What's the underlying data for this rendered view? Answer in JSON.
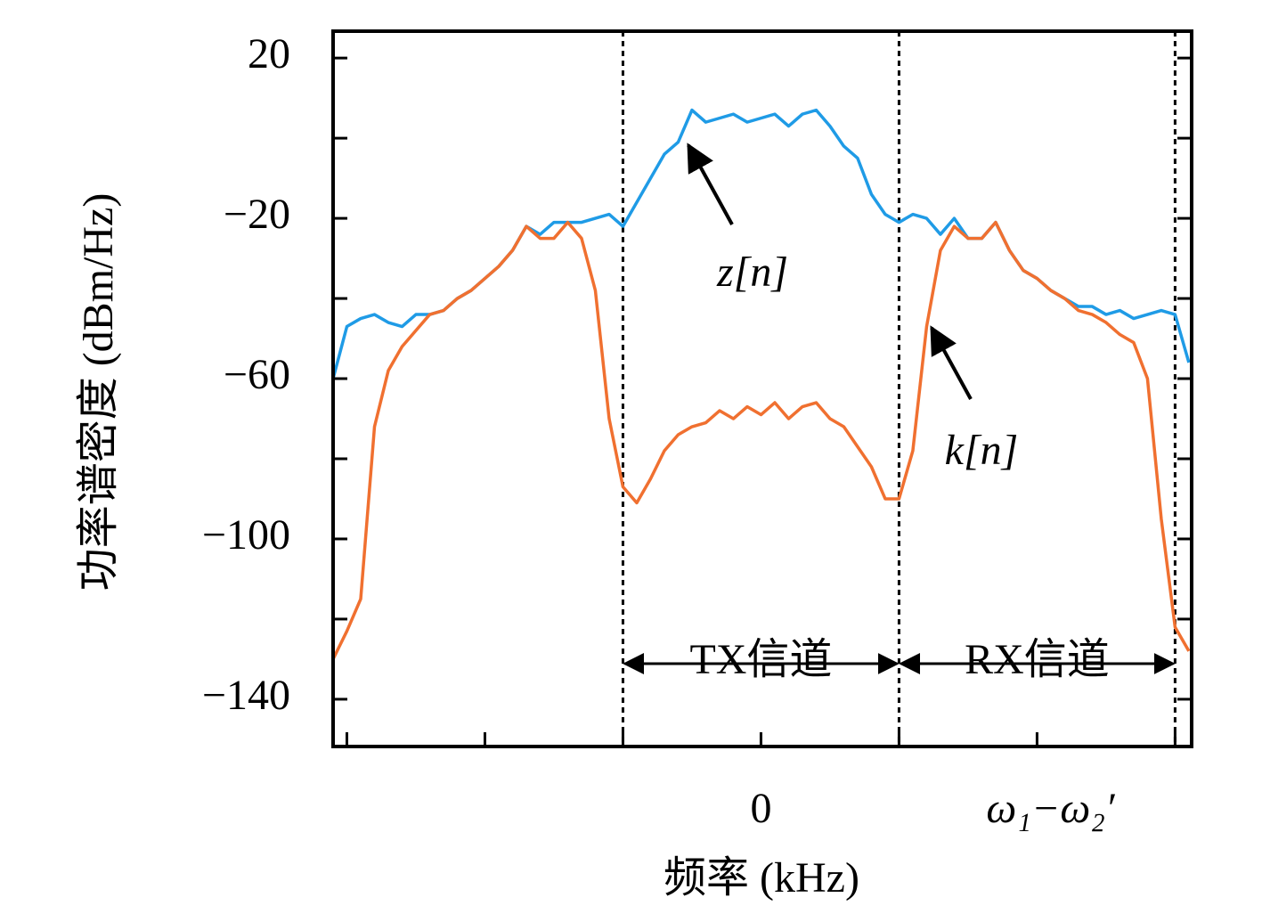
{
  "chart_data": {
    "type": "line",
    "x_label": "频率 (kHz)",
    "y_label": "功率谱密度 (dBm/Hz)",
    "xlim": [
      -3.1,
      3.12
    ],
    "ylim": [
      -151.8,
      26.7
    ],
    "xticks": [
      {
        "value": 0,
        "label": "0"
      },
      {
        "value": 2,
        "label": "ω₁−ω₂′"
      }
    ],
    "xticks_minor": [
      -3,
      -2,
      -1,
      1,
      3
    ],
    "yticks": [
      {
        "value": -140,
        "label": "−140"
      },
      {
        "value": -100,
        "label": "−100"
      },
      {
        "value": -60,
        "label": "−60"
      },
      {
        "value": -20,
        "label": "−20"
      },
      20
    ],
    "yticks_minor": [
      -120,
      -80,
      -40,
      0
    ],
    "vlines": [
      -1,
      1,
      3
    ],
    "channel_labels": [
      "TX信道",
      "RX信道"
    ],
    "annotations": [
      "z[n]",
      "k[n]"
    ],
    "x": [
      -3.1,
      -3.0,
      -2.9,
      -2.8,
      -2.7,
      -2.6,
      -2.5,
      -2.4,
      -2.3,
      -2.2,
      -2.1,
      -2.0,
      -1.9,
      -1.8,
      -1.7,
      -1.6,
      -1.5,
      -1.4,
      -1.3,
      -1.2,
      -1.1,
      -1.0,
      -0.9,
      -0.8,
      -0.7,
      -0.6,
      -0.5,
      -0.4,
      -0.3,
      -0.2,
      -0.1,
      0.0,
      0.1,
      0.2,
      0.3,
      0.4,
      0.5,
      0.6,
      0.7,
      0.8,
      0.9,
      1.0,
      1.1,
      1.2,
      1.3,
      1.4,
      1.5,
      1.6,
      1.7,
      1.8,
      1.9,
      2.0,
      2.1,
      2.2,
      2.3,
      2.4,
      2.5,
      2.6,
      2.7,
      2.8,
      2.9,
      3.0,
      3.1
    ],
    "series": [
      {
        "name": "z[n]",
        "color": "#1f9be6",
        "values": [
          -60,
          -47,
          -45,
          -44,
          -46,
          -47,
          -44,
          -44,
          -43,
          -40,
          -38,
          -35,
          -32,
          -28,
          -22,
          -24,
          -21,
          -21,
          -21,
          -20,
          -19,
          -22,
          -16,
          -10,
          -4,
          -1,
          7,
          4,
          5,
          6,
          4,
          5,
          6,
          3,
          6,
          7,
          3,
          -2,
          -5,
          -14,
          -19,
          -21,
          -19,
          -20,
          -24,
          -20,
          -25,
          -25,
          -21,
          -28,
          -33,
          -35,
          -38,
          -40,
          -42,
          -42,
          -44,
          -43,
          -45,
          -44,
          -43,
          -44,
          -56
        ]
      },
      {
        "name": "k[n]",
        "color": "#f07030",
        "values": [
          -130,
          -123,
          -115,
          -72,
          -58,
          -52,
          -48,
          -44,
          -43,
          -40,
          -38,
          -35,
          -32,
          -28,
          -22,
          -25,
          -25,
          -21,
          -25,
          -38,
          -70,
          -87,
          -91,
          -85,
          -78,
          -74,
          -72,
          -71,
          -68,
          -70,
          -67,
          -69,
          -66,
          -70,
          -67,
          -66,
          -70,
          -72,
          -77,
          -82,
          -90,
          -90,
          -78,
          -47,
          -28,
          -22,
          -25,
          -25,
          -21,
          -28,
          -33,
          -35,
          -38,
          -40,
          -43,
          -44,
          -46,
          -49,
          -51,
          -60,
          -95,
          -122,
          -128
        ]
      }
    ]
  }
}
